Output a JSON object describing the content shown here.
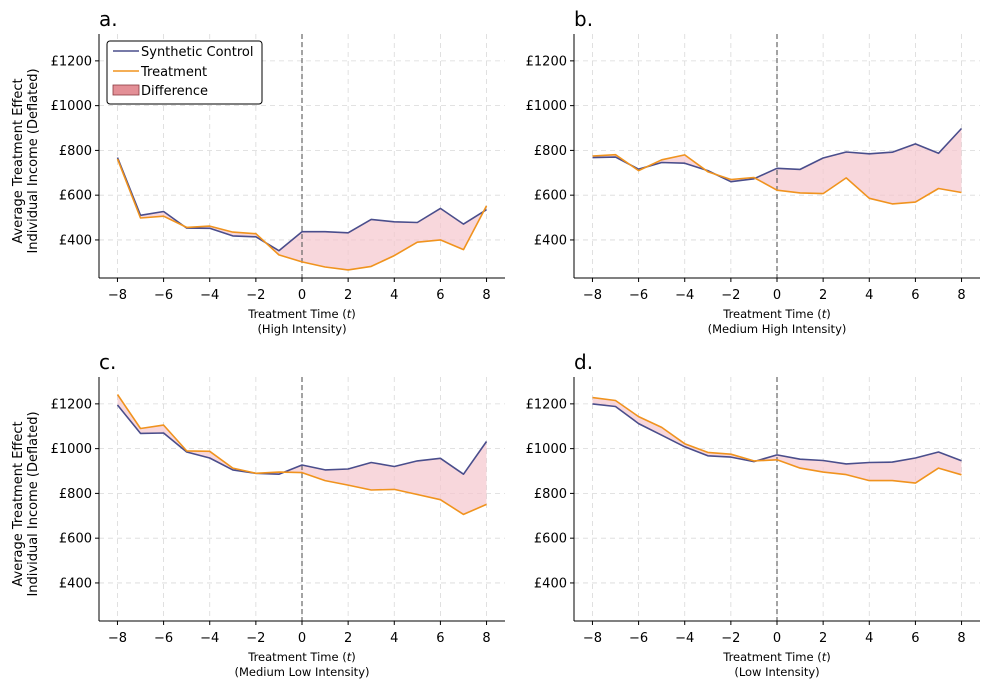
{
  "colors": {
    "synthetic": "#4a4e8c",
    "treatment": "#f0931e",
    "difference_fill": "#f5c6cd",
    "legend_patch": "#e38f96",
    "grid": "#d9d9d9",
    "vline": "#666666"
  },
  "legend": {
    "placement": "upper-left of panel a",
    "synthetic_label": "Synthetic Control",
    "treatment_label": "Treatment",
    "difference_label": "Difference"
  },
  "y_axis_label_line1": "Average Treatment Effect",
  "y_axis_label_line2": "Individual Income (Deflated)",
  "x_axis_label_prefix": "Treatment Time (",
  "x_axis_label_var": "t",
  "x_axis_label_suffix": ")",
  "chart_data": [
    {
      "type": "line",
      "panel": "a.",
      "subtitle": "(High Intensity)",
      "x": [
        -8,
        -7,
        -6,
        -5,
        -4,
        -3,
        -2,
        -1,
        0,
        1,
        2,
        3,
        4,
        5,
        6,
        7,
        8
      ],
      "series": [
        {
          "name": "Synthetic Control",
          "values": [
            768,
            510,
            527,
            453,
            452,
            418,
            414,
            352,
            437,
            437,
            432,
            492,
            481,
            478,
            541,
            471,
            535
          ]
        },
        {
          "name": "Treatment",
          "values": [
            762,
            498,
            506,
            456,
            462,
            435,
            428,
            333,
            302,
            279,
            266,
            282,
            330,
            390,
            400,
            357,
            552
          ]
        }
      ],
      "xlim": [
        -8.8,
        8.8
      ],
      "ylim": [
        230,
        1320
      ],
      "xticks": [
        -8,
        -6,
        -4,
        -2,
        0,
        2,
        4,
        6,
        8
      ],
      "yticks": [
        400,
        600,
        800,
        1000,
        1200
      ],
      "ytick_labels": [
        "£400",
        "£600",
        "£800",
        "£1000",
        "£1200"
      ],
      "xtick_labels": [
        "−8",
        "−6",
        "−4",
        "−2",
        "0",
        "2",
        "4",
        "6",
        "8"
      ],
      "vline_x": 0,
      "grid": true
    },
    {
      "type": "line",
      "panel": "b.",
      "subtitle": "(Medium High Intensity)",
      "x": [
        -8,
        -7,
        -6,
        -5,
        -4,
        -3,
        -2,
        -1,
        0,
        1,
        2,
        3,
        4,
        5,
        6,
        7,
        8
      ],
      "series": [
        {
          "name": "Synthetic Control",
          "values": [
            768,
            770,
            716,
            746,
            743,
            710,
            660,
            673,
            720,
            715,
            766,
            793,
            785,
            792,
            829,
            787,
            898
          ]
        },
        {
          "name": "Treatment",
          "values": [
            775,
            781,
            710,
            758,
            780,
            705,
            670,
            679,
            622,
            610,
            607,
            677,
            586,
            561,
            569,
            630,
            612
          ]
        }
      ],
      "xlim": [
        -8.8,
        8.8
      ],
      "ylim": [
        230,
        1320
      ],
      "xticks": [
        -8,
        -6,
        -4,
        -2,
        0,
        2,
        4,
        6,
        8
      ],
      "yticks": [
        400,
        600,
        800,
        1000,
        1200
      ],
      "ytick_labels": [
        "£400",
        "£600",
        "£800",
        "£1000",
        "£1200"
      ],
      "xtick_labels": [
        "−8",
        "−6",
        "−4",
        "−2",
        "0",
        "2",
        "4",
        "6",
        "8"
      ],
      "vline_x": 0,
      "grid": true
    },
    {
      "type": "line",
      "panel": "c.",
      "subtitle": "(Medium Low Intensity)",
      "x": [
        -8,
        -7,
        -6,
        -5,
        -4,
        -3,
        -2,
        -1,
        0,
        1,
        2,
        3,
        4,
        5,
        6,
        7,
        8
      ],
      "series": [
        {
          "name": "Synthetic Control",
          "values": [
            1195,
            1068,
            1070,
            985,
            958,
            905,
            890,
            886,
            927,
            905,
            909,
            938,
            920,
            945,
            957,
            886,
            1032
          ]
        },
        {
          "name": "Treatment",
          "values": [
            1242,
            1090,
            1105,
            990,
            988,
            913,
            890,
            895,
            893,
            857,
            837,
            815,
            818,
            795,
            772,
            706,
            751
          ]
        }
      ],
      "xlim": [
        -8.8,
        8.8
      ],
      "ylim": [
        230,
        1320
      ],
      "xticks": [
        -8,
        -6,
        -4,
        -2,
        0,
        2,
        4,
        6,
        8
      ],
      "yticks": [
        400,
        600,
        800,
        1000,
        1200
      ],
      "ytick_labels": [
        "£400",
        "£600",
        "£800",
        "£1000",
        "£1200"
      ],
      "xtick_labels": [
        "−8",
        "−6",
        "−4",
        "−2",
        "0",
        "2",
        "4",
        "6",
        "8"
      ],
      "vline_x": 0,
      "grid": true
    },
    {
      "type": "line",
      "panel": "d.",
      "subtitle": "(Low Intensity)",
      "x": [
        -8,
        -7,
        -6,
        -5,
        -4,
        -3,
        -2,
        -1,
        0,
        1,
        2,
        3,
        4,
        5,
        6,
        7,
        8
      ],
      "series": [
        {
          "name": "Synthetic Control",
          "values": [
            1200,
            1188,
            1112,
            1060,
            1008,
            968,
            962,
            942,
            972,
            953,
            947,
            932,
            938,
            940,
            958,
            985,
            946
          ]
        },
        {
          "name": "Treatment",
          "values": [
            1228,
            1215,
            1143,
            1095,
            1022,
            983,
            975,
            945,
            950,
            913,
            895,
            884,
            857,
            857,
            846,
            913,
            883
          ]
        }
      ],
      "xlim": [
        -8.8,
        8.8
      ],
      "ylim": [
        230,
        1320
      ],
      "xticks": [
        -8,
        -6,
        -4,
        -2,
        0,
        2,
        4,
        6,
        8
      ],
      "yticks": [
        400,
        600,
        800,
        1000,
        1200
      ],
      "ytick_labels": [
        "£400",
        "£600",
        "£800",
        "£1000",
        "£1200"
      ],
      "xtick_labels": [
        "−8",
        "−6",
        "−4",
        "−2",
        "0",
        "2",
        "4",
        "6",
        "8"
      ],
      "vline_x": 0,
      "grid": true
    }
  ]
}
